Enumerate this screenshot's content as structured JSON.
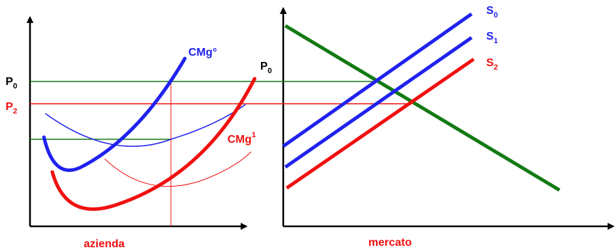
{
  "colors": {
    "axis": "#000000",
    "blue": "#1f22ee",
    "red": "#f01010",
    "green": "#137a13"
  },
  "left_panel": {
    "caption": "azienda",
    "labels": {
      "p0": {
        "base": "P",
        "sub": "0"
      },
      "p2": {
        "base": "P",
        "sub": "2"
      },
      "cmg0": "CMg°",
      "cmg1": {
        "base": "CMg",
        "sup": "1"
      }
    }
  },
  "right_panel": {
    "caption": "mercato",
    "labels": {
      "p0": {
        "base": "P",
        "sub": "0"
      },
      "s0": {
        "base": "S",
        "sub": "0"
      },
      "s1": {
        "base": "S",
        "sub": "1"
      },
      "s2": {
        "base": "S",
        "sub": "2"
      }
    }
  }
}
